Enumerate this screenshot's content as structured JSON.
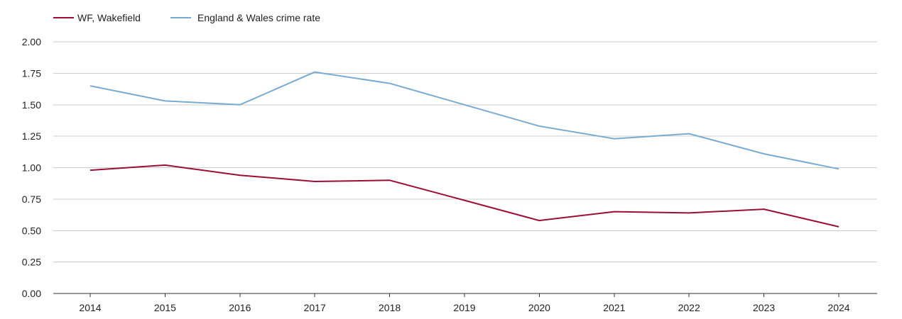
{
  "chart_data": {
    "type": "line",
    "title": "",
    "xlabel": "",
    "ylabel": "",
    "x": [
      "2014",
      "2015",
      "2016",
      "2017",
      "2018",
      "2019",
      "2020",
      "2021",
      "2022",
      "2023",
      "2024"
    ],
    "ylim": [
      0,
      2
    ],
    "yticks": [
      "0.00",
      "0.25",
      "0.50",
      "0.75",
      "1.00",
      "1.25",
      "1.50",
      "1.75",
      "2.00"
    ],
    "grid": true,
    "legend_position": "top-left",
    "series": [
      {
        "name": "WF, Wakefield",
        "color": "#9b0f34",
        "values": [
          0.98,
          1.02,
          0.94,
          0.89,
          0.9,
          0.74,
          0.58,
          0.65,
          0.64,
          0.67,
          0.53
        ]
      },
      {
        "name": "England & Wales crime rate",
        "color": "#7aabcf",
        "values": [
          1.65,
          1.53,
          1.5,
          1.76,
          1.67,
          1.5,
          1.33,
          1.23,
          1.27,
          1.11,
          0.99
        ]
      }
    ]
  }
}
